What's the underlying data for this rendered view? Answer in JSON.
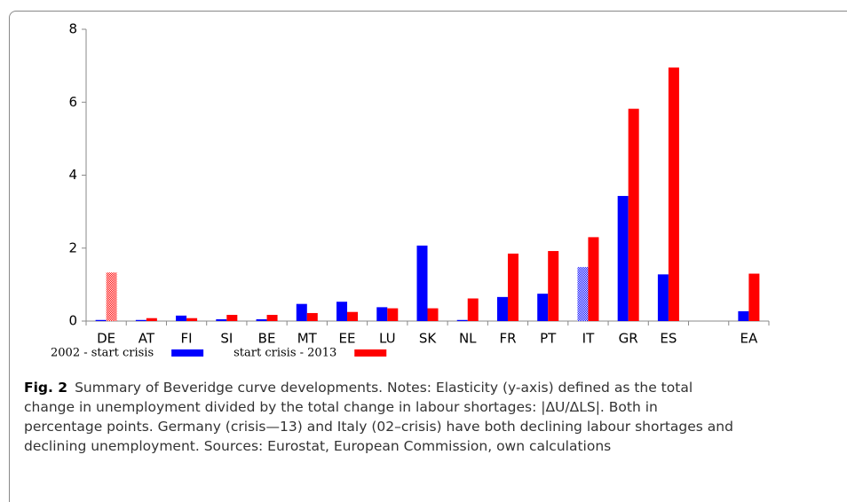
{
  "chart_data": {
    "type": "bar",
    "categories": [
      "DE",
      "AT",
      "FI",
      "SI",
      "BE",
      "MT",
      "EE",
      "LU",
      "SK",
      "NL",
      "FR",
      "PT",
      "IT",
      "GR",
      "ES",
      null,
      "EA"
    ],
    "series": [
      {
        "name": "2002 - start crisis",
        "color": "#0000ff",
        "patterned": [
          12
        ],
        "values": [
          0.03,
          0.03,
          0.15,
          0.05,
          0.05,
          0.47,
          0.53,
          0.38,
          2.07,
          0.03,
          0.66,
          0.75,
          1.48,
          3.43,
          1.28,
          null,
          0.27
        ]
      },
      {
        "name": "start crisis - 2013",
        "color": "#ff0000",
        "patterned": [
          0
        ],
        "values": [
          1.33,
          0.08,
          0.08,
          0.17,
          0.17,
          0.22,
          0.25,
          0.35,
          0.35,
          0.62,
          1.85,
          1.92,
          2.3,
          5.82,
          6.95,
          null,
          1.3
        ]
      }
    ],
    "ylim": [
      0,
      8
    ],
    "yticks": [
      0,
      2,
      4,
      6,
      8
    ],
    "grid": false
  },
  "caption": {
    "label": "Fig. 2",
    "text": "Summary of Beveridge curve developments. Notes: Elasticity (y-axis) defined as the total change in unemployment divided by the total change in labour shortages: |ΔU/ΔLS|. Both in percentage points. Germany (crisis—13) and Italy (02–crisis) have both declining labour shortages and declining unemployment. Sources: Eurostat, European Commission, own calculations"
  }
}
